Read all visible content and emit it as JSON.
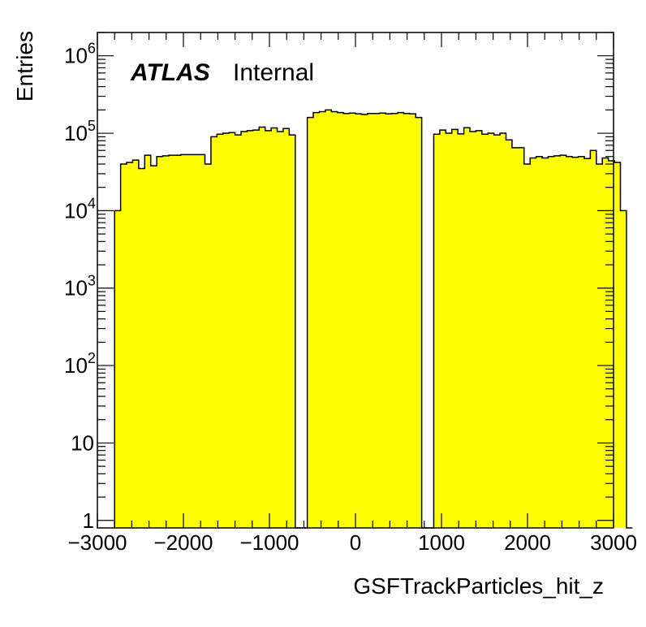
{
  "chart_data": {
    "type": "bar",
    "xlabel": "GSFTrackParticles_hit_z",
    "ylabel": "Entries",
    "xlim": [
      -3000,
      3000
    ],
    "ylim": [
      0.8,
      2000000
    ],
    "yscale": "log",
    "x_ticks": [
      {
        "value": -3000,
        "label": "−3000"
      },
      {
        "value": -2000,
        "label": "−2000"
      },
      {
        "value": -1000,
        "label": "−1000"
      },
      {
        "value": 0,
        "label": "0"
      },
      {
        "value": 1000,
        "label": "1000"
      },
      {
        "value": 2000,
        "label": "2000"
      },
      {
        "value": 3000,
        "label": "3000"
      }
    ],
    "y_ticks": [
      {
        "value": 1,
        "base": "1",
        "exp": ""
      },
      {
        "value": 10,
        "base": "10",
        "exp": ""
      },
      {
        "value": 100,
        "base": "10",
        "exp": "2"
      },
      {
        "value": 1000,
        "base": "10",
        "exp": "3"
      },
      {
        "value": 10000,
        "base": "10",
        "exp": "4"
      },
      {
        "value": 100000,
        "base": "10",
        "exp": "5"
      },
      {
        "value": 1000000,
        "base": "10",
        "exp": "6"
      }
    ],
    "annotation": {
      "bold": "ATLAS",
      "text": "Internal"
    },
    "fill_color": "#ffff00",
    "line_color": "#000000",
    "grid": false,
    "bin_edges_start": -2800,
    "bin_width": 70,
    "values": [
      10000,
      40000,
      42000,
      45000,
      35000,
      52000,
      38000,
      50000,
      51000,
      52000,
      52000,
      53000,
      53000,
      53000,
      53000,
      40000,
      90000,
      97000,
      100000,
      102000,
      95000,
      105000,
      108000,
      110000,
      120000,
      108000,
      117000,
      105000,
      115000,
      95000,
      0,
      0,
      160000,
      185000,
      190000,
      200000,
      190000,
      185000,
      180000,
      182000,
      178000,
      175000,
      180000,
      180000,
      182000,
      178000,
      180000,
      185000,
      180000,
      178000,
      160000,
      0,
      0,
      97000,
      110000,
      100000,
      112000,
      98000,
      118000,
      105000,
      108000,
      97000,
      100000,
      95000,
      100000,
      82000,
      65000,
      65000,
      40000,
      48000,
      50000,
      48000,
      50000,
      51000,
      52000,
      50000,
      49000,
      50000,
      47000,
      60000,
      40000,
      48000,
      44000,
      42000,
      10000,
      0
    ]
  }
}
